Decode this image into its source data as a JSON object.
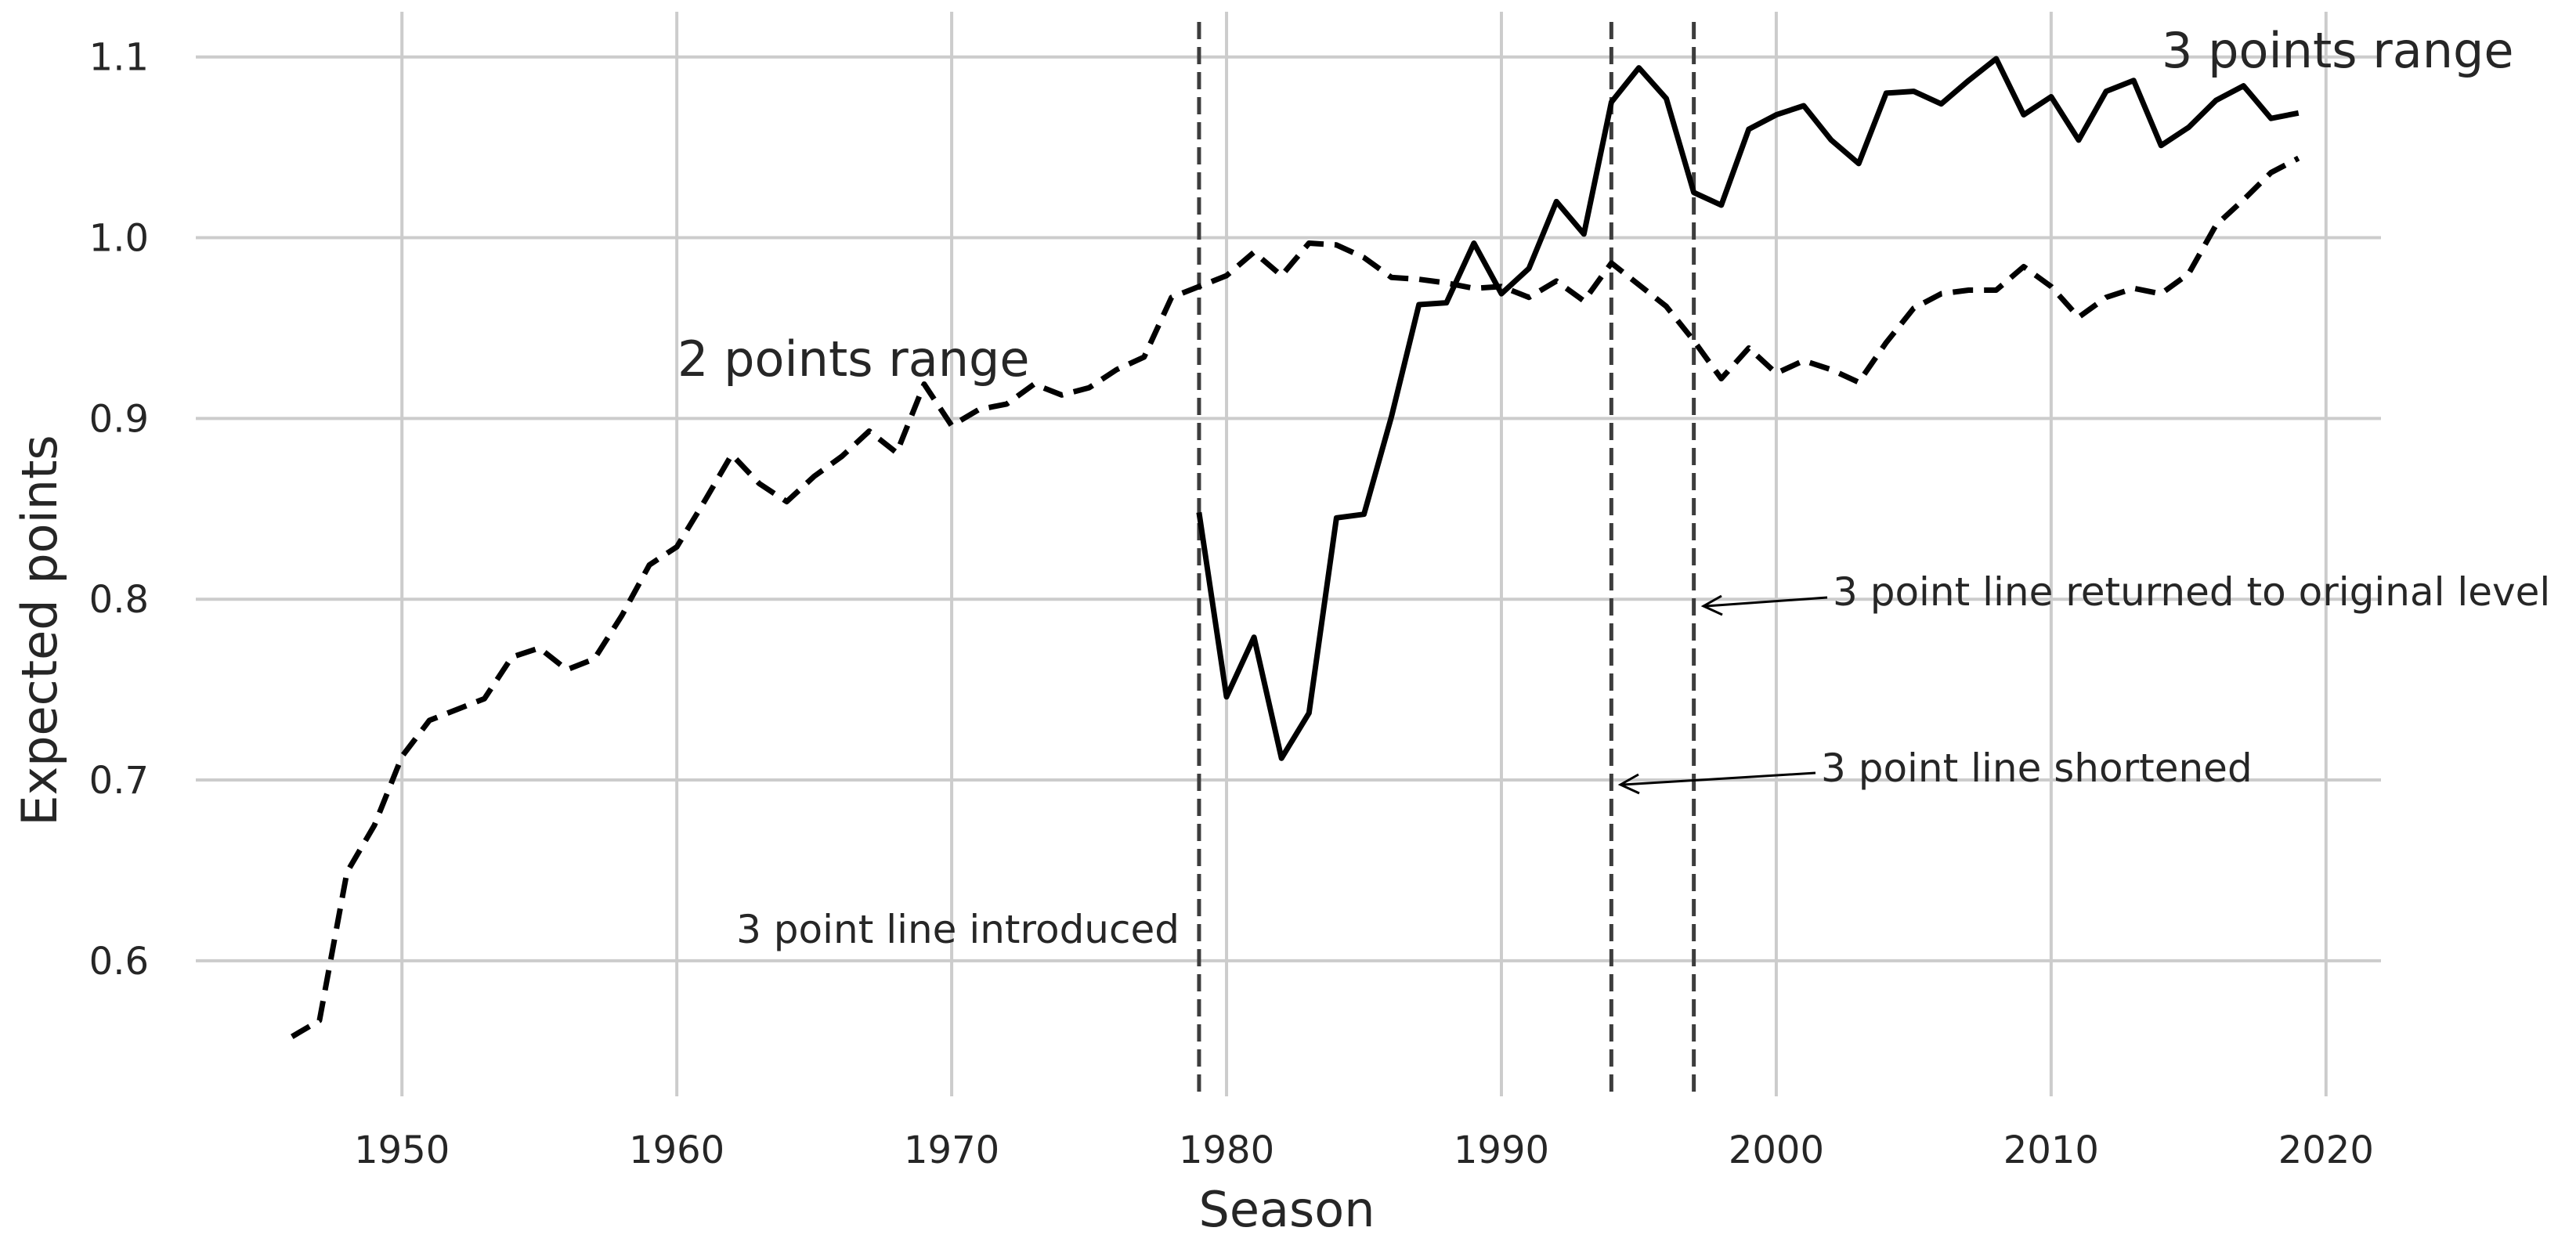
{
  "chart_data": {
    "type": "line",
    "xlabel": "Season",
    "ylabel": "Expected points",
    "xlim": [
      1942.5,
      2022
    ],
    "ylim": [
      0.525,
      1.125
    ],
    "x_ticks": [
      1950,
      1960,
      1970,
      1980,
      1990,
      2000,
      2010,
      2020
    ],
    "y_ticks": [
      0.6,
      0.7,
      0.8,
      0.9,
      1.0,
      1.1
    ],
    "grid": true,
    "series": [
      {
        "name": "2 points range",
        "style": "dashed",
        "color": "#000000",
        "x": [
          1946,
          1947,
          1948,
          1949,
          1950,
          1951,
          1952,
          1953,
          1954,
          1955,
          1956,
          1957,
          1958,
          1959,
          1960,
          1961,
          1962,
          1963,
          1964,
          1965,
          1966,
          1967,
          1968,
          1969,
          1970,
          1971,
          1972,
          1973,
          1974,
          1975,
          1976,
          1977,
          1978,
          1979,
          1980,
          1981,
          1982,
          1983,
          1984,
          1985,
          1986,
          1987,
          1988,
          1989,
          1990,
          1991,
          1992,
          1993,
          1994,
          1995,
          1996,
          1997,
          1998,
          1999,
          2000,
          2001,
          2002,
          2003,
          2004,
          2005,
          2006,
          2007,
          2008,
          2009,
          2010,
          2011,
          2012,
          2013,
          2014,
          2015,
          2016,
          2017,
          2018,
          2019
        ],
        "y": [
          0.558,
          0.567,
          0.649,
          0.675,
          0.713,
          0.733,
          0.739,
          0.745,
          0.768,
          0.773,
          0.761,
          0.767,
          0.791,
          0.819,
          0.829,
          0.854,
          0.88,
          0.864,
          0.854,
          0.868,
          0.879,
          0.893,
          0.881,
          0.919,
          0.896,
          0.905,
          0.908,
          0.919,
          0.913,
          0.917,
          0.927,
          0.934,
          0.967,
          0.973,
          0.979,
          0.992,
          0.979,
          0.997,
          0.996,
          0.989,
          0.978,
          0.977,
          0.975,
          0.972,
          0.973,
          0.967,
          0.976,
          0.965,
          0.986,
          0.974,
          0.962,
          0.943,
          0.922,
          0.939,
          0.925,
          0.932,
          0.927,
          0.92,
          0.942,
          0.961,
          0.969,
          0.971,
          0.971,
          0.984,
          0.973,
          0.956,
          0.967,
          0.972,
          0.969,
          0.98,
          1.007,
          1.021,
          1.036,
          1.044
        ]
      },
      {
        "name": "3 points range",
        "style": "solid",
        "color": "#000000",
        "x": [
          1979,
          1980,
          1981,
          1982,
          1983,
          1984,
          1985,
          1986,
          1987,
          1988,
          1989,
          1990,
          1991,
          1992,
          1993,
          1994,
          1995,
          1996,
          1997,
          1998,
          1999,
          2000,
          2001,
          2002,
          2003,
          2004,
          2005,
          2006,
          2007,
          2008,
          2009,
          2010,
          2011,
          2012,
          2013,
          2014,
          2015,
          2016,
          2017,
          2018,
          2019
        ],
        "y": [
          0.848,
          0.746,
          0.779,
          0.712,
          0.737,
          0.845,
          0.847,
          0.901,
          0.963,
          0.964,
          0.997,
          0.969,
          0.983,
          1.02,
          1.002,
          1.075,
          1.094,
          1.077,
          1.025,
          1.018,
          1.06,
          1.068,
          1.073,
          1.054,
          1.041,
          1.08,
          1.081,
          1.074,
          1.087,
          1.099,
          1.068,
          1.078,
          1.054,
          1.081,
          1.087,
          1.051,
          1.061,
          1.076,
          1.084,
          1.066,
          1.069
        ]
      }
    ],
    "vertical_lines": [
      1979,
      1994,
      1997
    ],
    "annotations": {
      "two_points": "2 points range",
      "three_points": "3 points range",
      "introduced": "3 point line introduced",
      "shortened": "3 point line shortened",
      "returned": "3 point line returned to original level"
    }
  }
}
